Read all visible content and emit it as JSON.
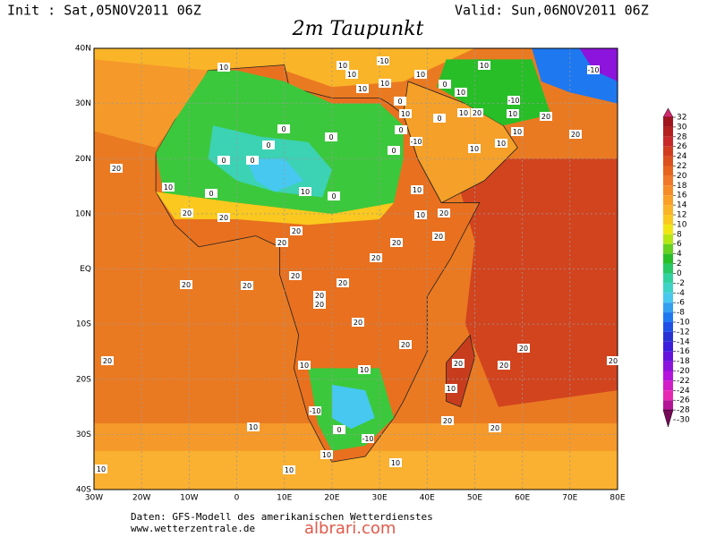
{
  "header": {
    "init": "Init : Sat,05NOV2011 06Z",
    "valid": "Valid: Sun,06NOV2011 06Z",
    "title": "2m Taupunkt"
  },
  "map": {
    "lonlim": [
      -30,
      80
    ],
    "latlim": [
      -40,
      40
    ],
    "lon_ticks": [
      {
        "value": -30,
        "label": "30W"
      },
      {
        "value": -20,
        "label": "20W"
      },
      {
        "value": -10,
        "label": "10W"
      },
      0,
      {
        "value": 10,
        "label": "10E"
      },
      {
        "value": 20,
        "label": "20E"
      },
      {
        "value": 30,
        "label": "30E"
      },
      {
        "value": 40,
        "label": "40E"
      },
      {
        "value": 50,
        "label": "50E"
      },
      {
        "value": 60,
        "label": "60E"
      },
      {
        "value": 70,
        "label": "70E"
      },
      {
        "value": 80,
        "label": "80E"
      }
    ],
    "lat_ticks": [
      {
        "value": 40,
        "label": "40N"
      },
      {
        "value": 30,
        "label": "30N"
      },
      {
        "value": 20,
        "label": "20N"
      },
      {
        "value": 10,
        "label": "10N"
      },
      {
        "value": 0,
        "label": "EQ"
      },
      {
        "value": -10,
        "label": "10S"
      },
      {
        "value": -20,
        "label": "20S"
      },
      {
        "value": -30,
        "label": "30S"
      },
      {
        "value": -40,
        "label": "40S"
      }
    ],
    "contour_labels": [
      10,
      10,
      -10,
      10,
      10,
      10,
      10,
      10,
      0,
      -10,
      -10,
      10,
      10,
      20,
      10,
      20,
      20,
      10,
      10,
      10,
      0,
      10,
      0,
      -10,
      0,
      0,
      0,
      0,
      0,
      0,
      20,
      10,
      0,
      10,
      0,
      0,
      10,
      20,
      20,
      10,
      20,
      20,
      20,
      20,
      20,
      20,
      20,
      20,
      20,
      20,
      20,
      20,
      20,
      20,
      20,
      20,
      20,
      20,
      20,
      10,
      10,
      10,
      -10,
      0,
      -10,
      10,
      20,
      20,
      10,
      10,
      10,
      10
    ]
  },
  "colorbar": {
    "levels": [
      32,
      30,
      28,
      26,
      24,
      22,
      20,
      18,
      16,
      14,
      12,
      10,
      8,
      6,
      4,
      2,
      0,
      -2,
      -4,
      -6,
      -8,
      -10,
      -12,
      -14,
      -16,
      -18,
      -20,
      -22,
      -24,
      -26,
      -28,
      -30
    ],
    "colors": [
      "#d2286e",
      "#a0141e",
      "#b41e1e",
      "#c82828",
      "#d23c1e",
      "#dc501e",
      "#e6641e",
      "#f07828",
      "#f58c28",
      "#faa028",
      "#fab428",
      "#fac81e",
      "#f0e614",
      "#b4e614",
      "#64d21e",
      "#28be28",
      "#28c864",
      "#32d2a0",
      "#3cd2c8",
      "#46c8f0",
      "#32a0f0",
      "#1e78f0",
      "#1e50e6",
      "#2832d2",
      "#3c1edc",
      "#6414dc",
      "#8c14dc",
      "#b414dc",
      "#d21ec8",
      "#e628b4",
      "#b41496",
      "#780a5a"
    ]
  },
  "footer": {
    "source": "Daten: GFS-Modell des amerikanischen Wetterdienstes",
    "site": "www.wetterzentrale.de",
    "watermark": "albrari.com"
  }
}
